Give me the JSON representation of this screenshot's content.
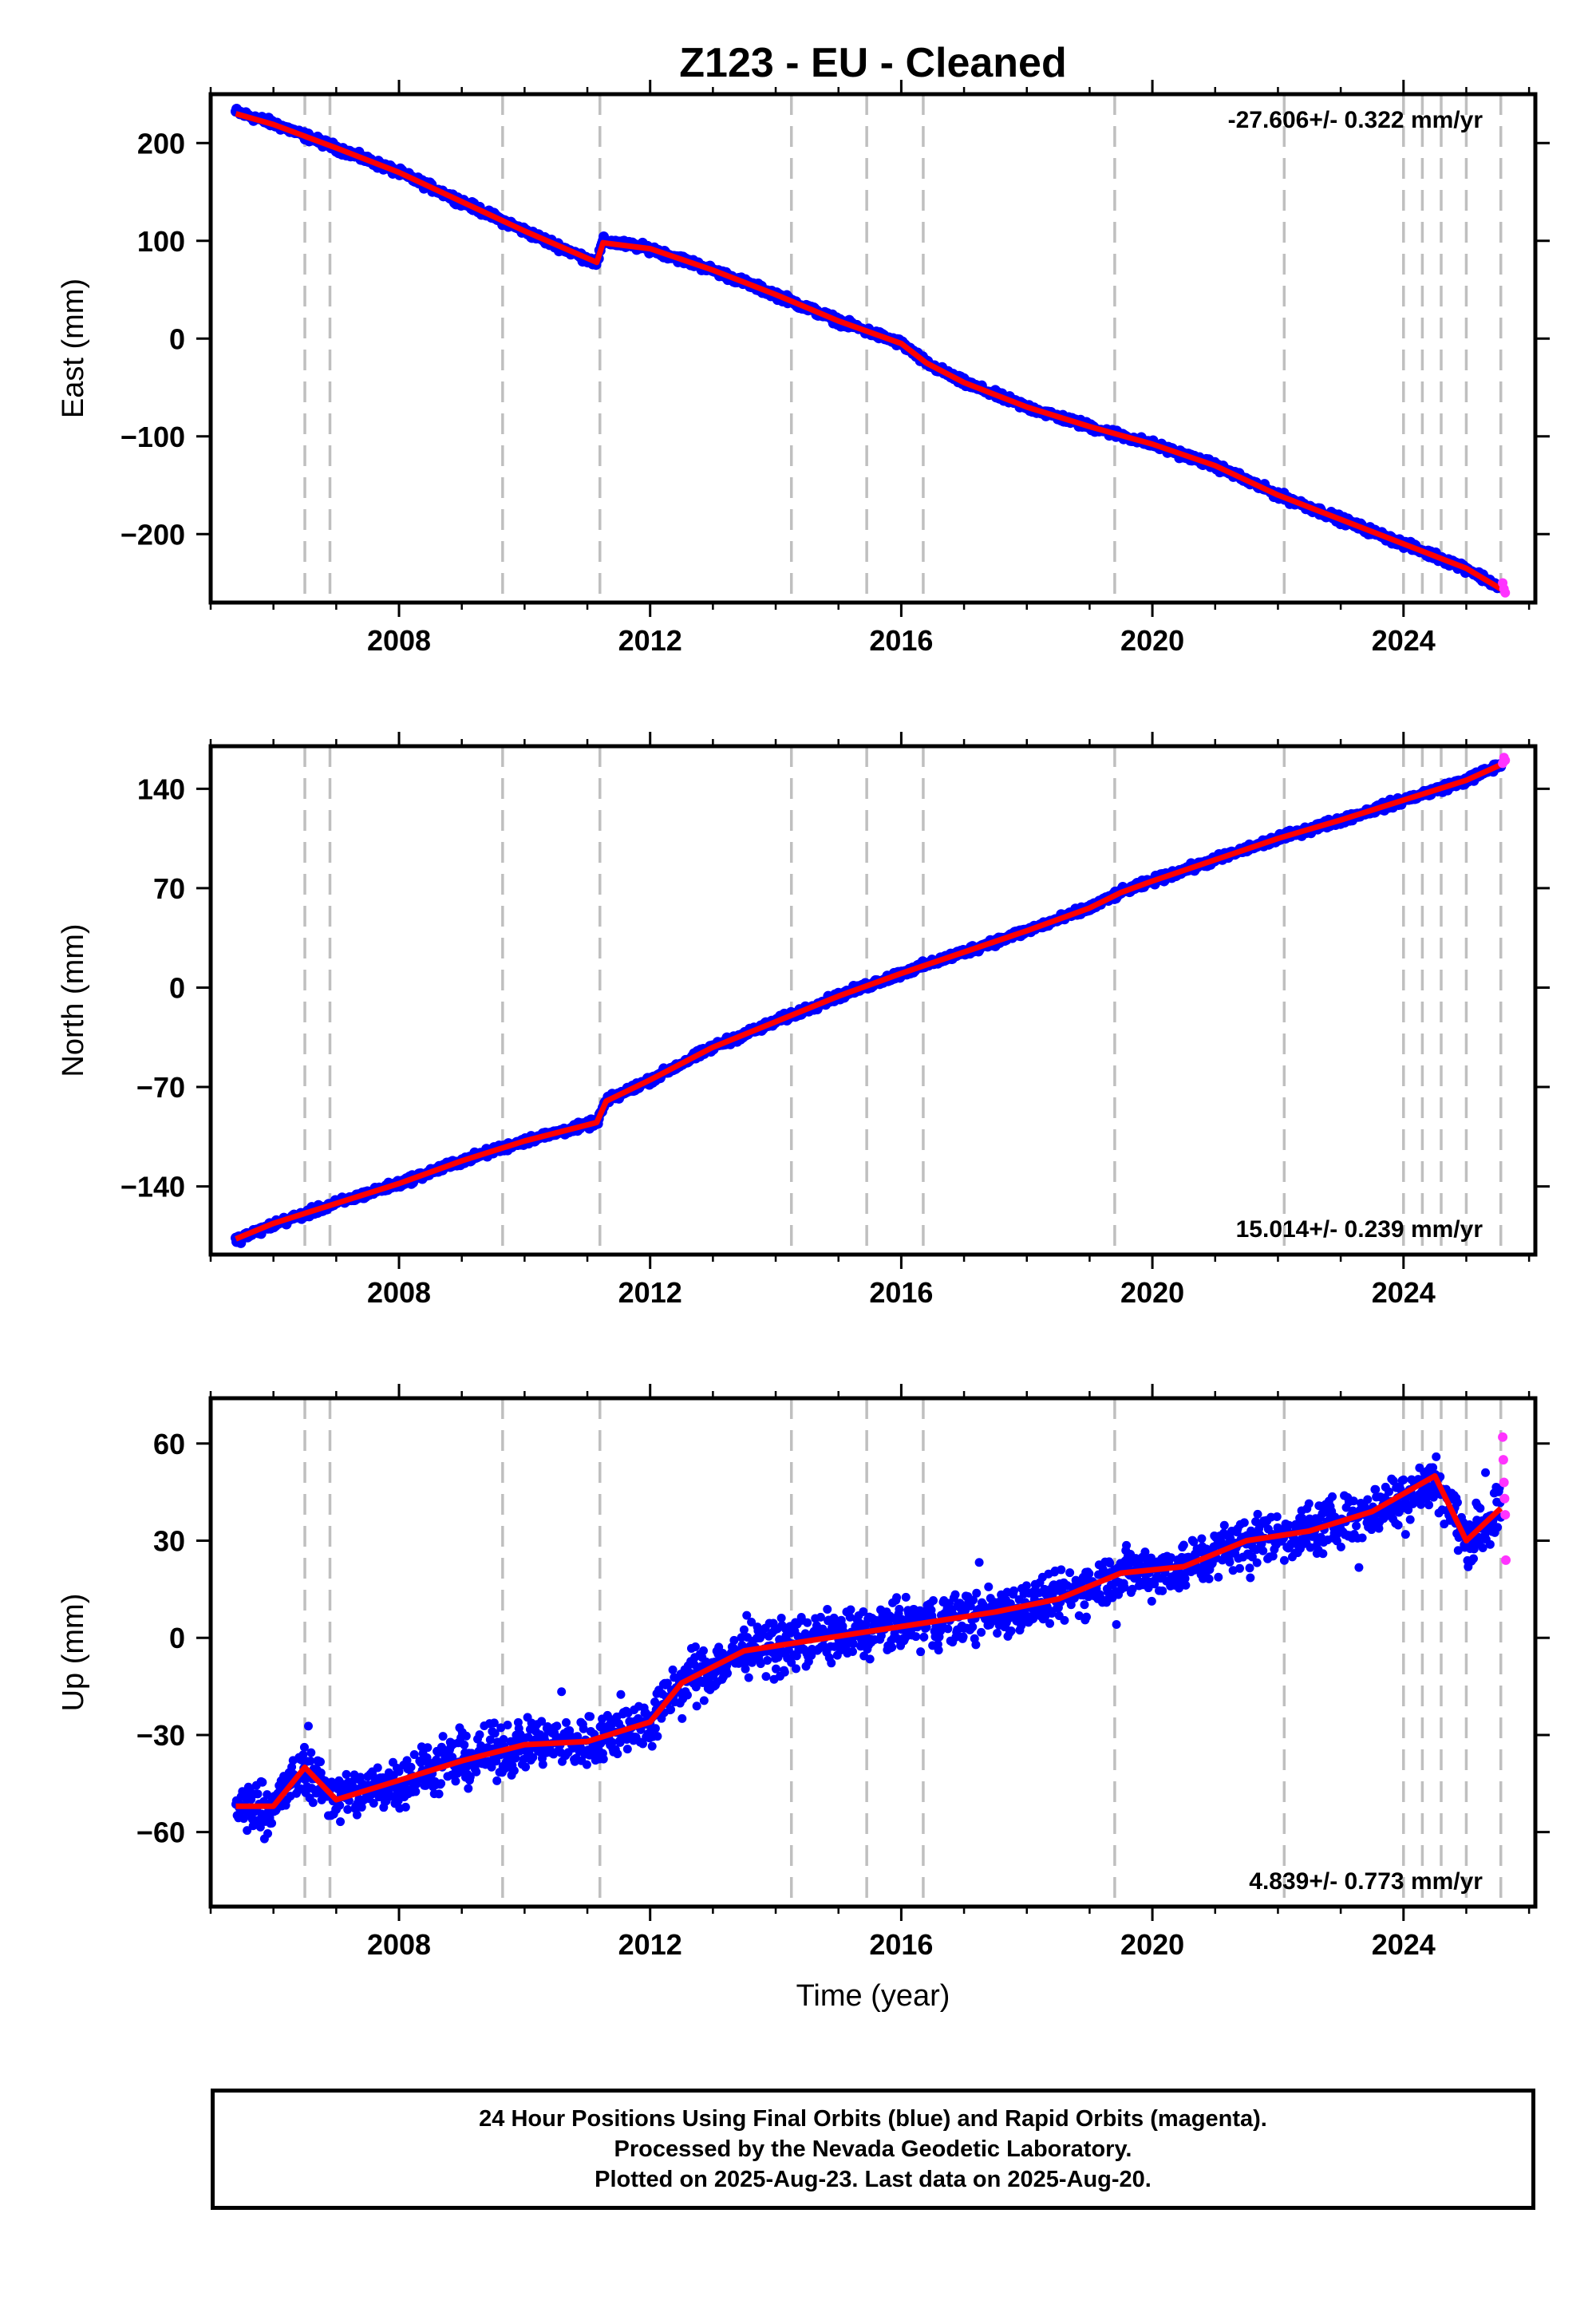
{
  "title": "Z123  - EU - Cleaned",
  "xlabel": "Time (year)",
  "footer": {
    "line1": "24 Hour Positions Using Final Orbits (blue) and Rapid Orbits (magenta).",
    "line2": "Processed by the Nevada Geodetic Laboratory.",
    "line3": "Plotted on 2025-Aug-23. Last data on 2025-Aug-20."
  },
  "colors": {
    "final_orbits": "#0000ff",
    "rapid_orbits": "#ff33ff",
    "model": "#ff0000",
    "event_lines": "#bfbfbf"
  },
  "chart_data": [
    {
      "type": "scatter",
      "panel": "east",
      "ylabel": "East (mm)",
      "rate_label": "-27.606+/- 0.322 mm/yr",
      "xlim": [
        2005.0,
        2026.1
      ],
      "ylim": [
        -270,
        250
      ],
      "xticks": [
        2008,
        2012,
        2016,
        2020,
        2024
      ],
      "yticks": [
        200,
        100,
        0,
        -100,
        -200
      ],
      "event_lines": [
        2006.5,
        2006.9,
        2009.65,
        2011.2,
        2014.25,
        2015.45,
        2016.35,
        2019.4,
        2022.1,
        2024.0,
        2024.3,
        2024.6,
        2025.0,
        2025.55
      ],
      "series": [
        {
          "role": "final_orbits",
          "x": [
            2005.4,
            2006.0,
            2007.0,
            2008.0,
            2009.0,
            2010.0,
            2011.15,
            2011.25,
            2012.0,
            2013.0,
            2014.0,
            2015.0,
            2016.0,
            2016.4,
            2017.0,
            2018.0,
            2019.0,
            2020.0,
            2021.0,
            2022.0,
            2023.0,
            2024.0,
            2025.0,
            2025.55
          ],
          "y": [
            232,
            220,
            195,
            170,
            140,
            110,
            77,
            100,
            92,
            70,
            45,
            18,
            -5,
            -25,
            -45,
            -70,
            -90,
            -108,
            -130,
            -160,
            -185,
            -210,
            -235,
            -255
          ]
        },
        {
          "role": "rapid_orbits",
          "x": [
            2025.58,
            2025.6,
            2025.62
          ],
          "y": [
            -250,
            -256,
            -260
          ]
        },
        {
          "role": "model",
          "x": [
            2005.4,
            2006.0,
            2007.0,
            2008.0,
            2009.0,
            2010.0,
            2011.15,
            2011.25,
            2012.0,
            2013.0,
            2014.0,
            2015.0,
            2016.0,
            2016.4,
            2017.0,
            2018.0,
            2019.0,
            2020.0,
            2021.0,
            2022.0,
            2023.0,
            2024.0,
            2025.0,
            2025.6
          ],
          "y": [
            230,
            219,
            195,
            170,
            140,
            110,
            78,
            98,
            92,
            70,
            45,
            18,
            -5,
            -25,
            -45,
            -70,
            -90,
            -108,
            -130,
            -160,
            -185,
            -210,
            -235,
            -258
          ]
        }
      ]
    },
    {
      "type": "scatter",
      "panel": "north",
      "ylabel": "North (mm)",
      "rate_label": "15.014+/- 0.239 mm/yr",
      "xlim": [
        2005.0,
        2026.1
      ],
      "ylim": [
        -188,
        170
      ],
      "xticks": [
        2008,
        2012,
        2016,
        2020,
        2024
      ],
      "yticks": [
        140,
        70,
        0,
        -70,
        -140
      ],
      "event_lines": [
        2006.5,
        2006.9,
        2009.65,
        2011.2,
        2014.25,
        2015.45,
        2016.35,
        2019.4,
        2022.1,
        2024.0,
        2024.3,
        2024.6,
        2025.0,
        2025.55
      ],
      "series": [
        {
          "role": "final_orbits",
          "x": [
            2005.4,
            2006.0,
            2007.0,
            2008.0,
            2009.0,
            2010.0,
            2011.15,
            2011.3,
            2012.0,
            2013.0,
            2014.0,
            2015.0,
            2016.0,
            2017.0,
            2018.0,
            2019.0,
            2019.5,
            2020.0,
            2021.0,
            2022.0,
            2023.0,
            2024.0,
            2025.0,
            2025.55
          ],
          "y": [
            -178,
            -167,
            -152,
            -138,
            -122,
            -108,
            -95,
            -80,
            -65,
            -42,
            -24,
            -6,
            10,
            25,
            40,
            56,
            67,
            75,
            90,
            105,
            118,
            132,
            146,
            157
          ]
        },
        {
          "role": "rapid_orbits",
          "x": [
            2025.58,
            2025.6,
            2025.62
          ],
          "y": [
            158,
            162,
            160
          ]
        },
        {
          "role": "model",
          "x": [
            2005.4,
            2006.0,
            2007.0,
            2008.0,
            2009.0,
            2010.0,
            2011.15,
            2011.3,
            2012.0,
            2013.0,
            2014.0,
            2015.0,
            2016.0,
            2017.0,
            2018.0,
            2019.0,
            2019.5,
            2020.0,
            2021.0,
            2022.0,
            2023.0,
            2024.0,
            2025.0,
            2025.6
          ],
          "y": [
            -177,
            -166,
            -152,
            -138,
            -122,
            -108,
            -95,
            -80,
            -65,
            -42,
            -24,
            -6,
            10,
            25,
            40,
            56,
            67,
            75,
            90,
            105,
            118,
            132,
            146,
            158
          ]
        }
      ]
    },
    {
      "type": "scatter",
      "panel": "up",
      "ylabel": "Up (mm)",
      "rate_label": "4.839+/- 0.773 mm/yr",
      "xlim": [
        2005.0,
        2026.1
      ],
      "ylim": [
        -83,
        74
      ],
      "xticks": [
        2008,
        2012,
        2016,
        2020,
        2024
      ],
      "yticks": [
        60,
        30,
        0,
        -30,
        -60
      ],
      "event_lines": [
        2006.5,
        2006.9,
        2009.65,
        2011.2,
        2014.25,
        2015.45,
        2016.35,
        2019.4,
        2022.1,
        2024.0,
        2024.3,
        2024.6,
        2025.0,
        2025.55
      ],
      "series": [
        {
          "role": "final_orbits",
          "x": [
            2005.4,
            2006.0,
            2006.5,
            2007.0,
            2008.0,
            2009.0,
            2010.0,
            2011.0,
            2012.0,
            2012.5,
            2013.5,
            2014.5,
            2015.5,
            2016.5,
            2017.5,
            2018.5,
            2019.5,
            2020.5,
            2021.5,
            2022.5,
            2023.5,
            2024.5,
            2025.0,
            2025.55
          ],
          "y": [
            -52,
            -52,
            -40,
            -50,
            -44,
            -38,
            -33,
            -32,
            -26,
            -14,
            -4,
            -1,
            2,
            5,
            8,
            12,
            20,
            22,
            30,
            33,
            39,
            50,
            30,
            40
          ]
        },
        {
          "role": "rapid_orbits",
          "x": [
            2025.58,
            2025.59,
            2025.6,
            2025.61,
            2025.62,
            2025.63
          ],
          "y": [
            62,
            55,
            48,
            43,
            38,
            24
          ]
        },
        {
          "role": "model",
          "x": [
            2005.4,
            2006.0,
            2006.5,
            2007.0,
            2008.0,
            2009.0,
            2010.0,
            2011.0,
            2012.0,
            2012.5,
            2013.5,
            2014.5,
            2015.5,
            2016.5,
            2017.5,
            2018.5,
            2019.5,
            2020.5,
            2021.5,
            2022.5,
            2023.5,
            2024.5,
            2025.0,
            2025.55
          ],
          "y": [
            -52,
            -52,
            -40,
            -50,
            -44,
            -38,
            -33,
            -32,
            -26,
            -14,
            -4,
            -1,
            2,
            5,
            8,
            12,
            20,
            22,
            30,
            33,
            39,
            50,
            30,
            40
          ]
        }
      ]
    }
  ]
}
